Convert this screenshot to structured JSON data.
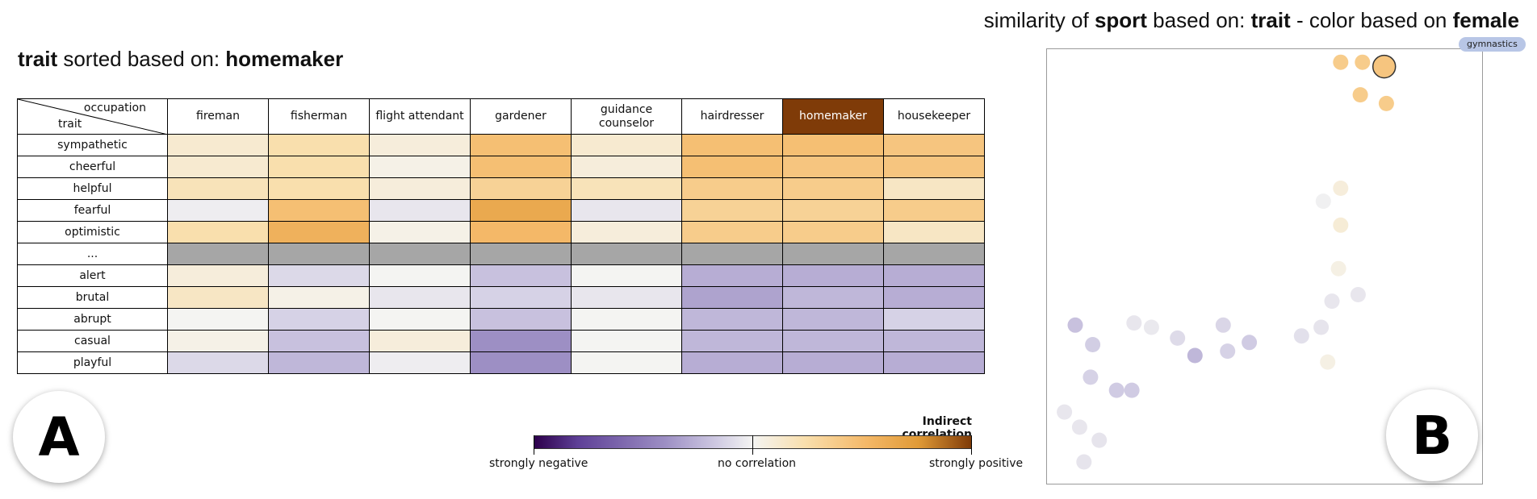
{
  "panel_a": {
    "title_prefix": "trait",
    "title_mid": " sorted based on: ",
    "title_key": "homemaker",
    "corner_col": "occupation",
    "corner_row": "trait",
    "columns": [
      "fireman",
      "fisherman",
      "flight attendant",
      "gardener",
      "guidance counselor",
      "hairdresser",
      "homemaker",
      "housekeeper"
    ],
    "active_column": "homemaker",
    "rows": [
      "sympathetic",
      "cheerful",
      "helpful",
      "fearful",
      "optimistic",
      "...",
      "alert",
      "brutal",
      "abrupt",
      "casual",
      "playful"
    ],
    "badge": "A"
  },
  "legend": {
    "title": "Indirect correlation",
    "low": "strongly negative",
    "mid": "no correlation",
    "high": "strongly positive"
  },
  "panel_b": {
    "title_parts": [
      "similarity of ",
      "sport",
      " based on: ",
      "trait",
      " - color based on ",
      "female"
    ],
    "tooltip": "gymnastics",
    "badge": "B"
  },
  "colors": {
    "negative_strong": "#2d004b",
    "neutral": "#f4f4f2",
    "positive_strong": "#7f3b08",
    "separator_row": "#a6a6a6",
    "tooltip_bg": "#b8c6e6"
  },
  "chart_data": {
    "type": "heatmap",
    "x_categories": [
      "fireman",
      "fisherman",
      "flight attendant",
      "gardener",
      "guidance counselor",
      "hairdresser",
      "homemaker",
      "housekeeper"
    ],
    "y_categories": [
      "sympathetic",
      "cheerful",
      "helpful",
      "fearful",
      "optimistic",
      "...",
      "alert",
      "brutal",
      "abrupt",
      "casual",
      "playful"
    ],
    "value_range": [
      -1,
      1
    ],
    "values": [
      [
        0.15,
        0.3,
        0.1,
        0.55,
        0.15,
        0.55,
        0.55,
        0.5
      ],
      [
        0.15,
        0.3,
        0.05,
        0.55,
        0.1,
        0.55,
        0.5,
        0.5
      ],
      [
        0.25,
        0.3,
        0.1,
        0.4,
        0.25,
        0.45,
        0.45,
        0.2
      ],
      [
        -0.05,
        0.55,
        -0.1,
        0.7,
        -0.1,
        0.4,
        0.4,
        0.45
      ],
      [
        0.3,
        0.65,
        0.05,
        0.6,
        0.1,
        0.45,
        0.45,
        0.2
      ],
      [
        null,
        null,
        null,
        null,
        null,
        null,
        null,
        null
      ],
      [
        0.1,
        -0.2,
        0.0,
        -0.35,
        0.0,
        -0.45,
        -0.45,
        -0.45
      ],
      [
        0.2,
        0.05,
        -0.1,
        -0.25,
        -0.1,
        -0.5,
        -0.4,
        -0.45
      ],
      [
        0.0,
        -0.25,
        0.0,
        -0.35,
        0.0,
        -0.4,
        -0.4,
        -0.25
      ],
      [
        0.05,
        -0.35,
        0.1,
        -0.6,
        0.0,
        -0.4,
        -0.4,
        -0.4
      ],
      [
        -0.2,
        -0.4,
        -0.05,
        -0.6,
        0.0,
        -0.45,
        -0.45,
        -0.45
      ]
    ],
    "scatter": {
      "type": "scatter",
      "xlim": [
        0,
        100
      ],
      "ylim": [
        0,
        100
      ],
      "points": [
        {
          "x": 67.5,
          "y": 97.0,
          "v": 0.45
        },
        {
          "x": 72.5,
          "y": 97.0,
          "v": 0.45
        },
        {
          "x": 77.5,
          "y": 96.0,
          "v": 0.5
        },
        {
          "x": 72.0,
          "y": 89.5,
          "v": 0.45
        },
        {
          "x": 78.0,
          "y": 87.5,
          "v": 0.45
        },
        {
          "x": 67.5,
          "y": 68.0,
          "v": 0.1
        },
        {
          "x": 63.5,
          "y": 65.0,
          "v": -0.03
        },
        {
          "x": 67.5,
          "y": 59.5,
          "v": 0.12
        },
        {
          "x": 67.0,
          "y": 49.5,
          "v": 0.06
        },
        {
          "x": 71.5,
          "y": 43.5,
          "v": -0.1
        },
        {
          "x": 65.5,
          "y": 42.0,
          "v": -0.1
        },
        {
          "x": 63.0,
          "y": 36.0,
          "v": -0.12
        },
        {
          "x": 58.5,
          "y": 34.0,
          "v": -0.15
        },
        {
          "x": 64.5,
          "y": 28.0,
          "v": 0.06
        },
        {
          "x": 6.5,
          "y": 36.5,
          "v": -0.35
        },
        {
          "x": 10.5,
          "y": 32.0,
          "v": -0.28
        },
        {
          "x": 20.0,
          "y": 37.0,
          "v": -0.1
        },
        {
          "x": 24.0,
          "y": 36.0,
          "v": -0.08
        },
        {
          "x": 30.0,
          "y": 33.5,
          "v": -0.18
        },
        {
          "x": 34.0,
          "y": 29.5,
          "v": -0.4
        },
        {
          "x": 40.5,
          "y": 36.5,
          "v": -0.22
        },
        {
          "x": 41.5,
          "y": 30.5,
          "v": -0.25
        },
        {
          "x": 46.5,
          "y": 32.5,
          "v": -0.3
        },
        {
          "x": 10.0,
          "y": 24.5,
          "v": -0.25
        },
        {
          "x": 16.0,
          "y": 21.5,
          "v": -0.3
        },
        {
          "x": 19.5,
          "y": 21.5,
          "v": -0.3
        },
        {
          "x": 4.0,
          "y": 16.5,
          "v": -0.1
        },
        {
          "x": 7.5,
          "y": 13.0,
          "v": -0.1
        },
        {
          "x": 12.0,
          "y": 10.0,
          "v": -0.12
        },
        {
          "x": 8.5,
          "y": 5.0,
          "v": -0.12
        }
      ],
      "highlighted_point_index": 2
    }
  }
}
